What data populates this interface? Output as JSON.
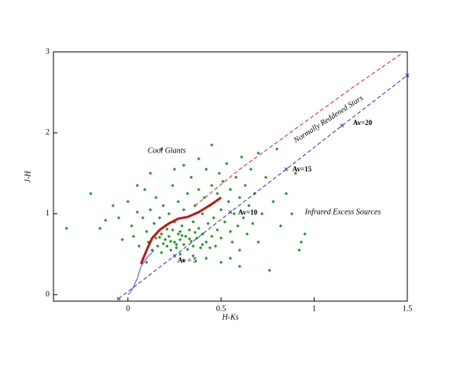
{
  "chart_data": {
    "type": "scatter",
    "x_label": "H-Ks",
    "y_label": "J-H",
    "xlim": [
      -0.4,
      1.5
    ],
    "ylim": [
      -0.08,
      3
    ],
    "xticks": [
      0,
      0.5,
      1,
      1.5
    ],
    "yticks": [
      0,
      1,
      2,
      3
    ],
    "annotations": [
      "Cool Giants",
      "Normally Reddened Stars",
      "Infrared Excess Sources",
      "Av=20",
      "Av=15",
      "Av=10",
      "Av = 5"
    ],
    "series": [
      {
        "mode": "markers",
        "color": "#1f9a1f",
        "x": [
          -0.33,
          -0.2,
          -0.15,
          -0.12,
          -0.08,
          -0.05,
          -0.03,
          0.0,
          0.02,
          0.03,
          0.05,
          0.06,
          0.08,
          0.09,
          0.1,
          0.11,
          0.12,
          0.13,
          0.14,
          0.15,
          0.15,
          0.16,
          0.17,
          0.18,
          0.18,
          0.19,
          0.2,
          0.2,
          0.21,
          0.22,
          0.22,
          0.23,
          0.24,
          0.24,
          0.25,
          0.25,
          0.26,
          0.27,
          0.27,
          0.28,
          0.28,
          0.29,
          0.3,
          0.3,
          0.31,
          0.32,
          0.32,
          0.33,
          0.34,
          0.34,
          0.35,
          0.35,
          0.36,
          0.37,
          0.38,
          0.38,
          0.39,
          0.4,
          0.4,
          0.41,
          0.42,
          0.42,
          0.43,
          0.44,
          0.45,
          0.45,
          0.46,
          0.47,
          0.48,
          0.48,
          0.49,
          0.5,
          0.5,
          0.51,
          0.52,
          0.53,
          0.54,
          0.55,
          0.55,
          0.56,
          0.57,
          0.58,
          0.59,
          0.6,
          0.6,
          0.61,
          0.62,
          0.63,
          0.64,
          0.65,
          0.66,
          0.67,
          0.68,
          0.7,
          0.7,
          0.72,
          0.74,
          0.76,
          0.78,
          0.8,
          0.82,
          0.85,
          0.88,
          0.9,
          0.92,
          0.95,
          0.93,
          0.18,
          0.25,
          0.1,
          0.35,
          0.42,
          0.5,
          0.55,
          0.6,
          0.3,
          0.12,
          0.05,
          0.45,
          0.38,
          0.3,
          0.26,
          0.29,
          0.33,
          0.36,
          0.23,
          0.19,
          0.21,
          0.17,
          0.4,
          0.44,
          0.28
        ],
        "y": [
          0.82,
          1.25,
          0.82,
          0.92,
          1.1,
          0.95,
          0.68,
          1.15,
          0.85,
          0.72,
          1.02,
          0.6,
          0.95,
          1.3,
          0.78,
          0.65,
          1.05,
          0.55,
          0.88,
          0.7,
          1.2,
          0.6,
          0.95,
          0.75,
          0.52,
          1.1,
          0.68,
          0.85,
          0.6,
          1.0,
          0.72,
          0.55,
          0.8,
          1.35,
          0.65,
          0.9,
          0.58,
          0.75,
          1.15,
          0.68,
          0.5,
          0.85,
          0.62,
          1.05,
          0.72,
          0.56,
          1.25,
          0.8,
          0.66,
          1.45,
          0.9,
          0.6,
          1.1,
          0.7,
          0.82,
          1.3,
          0.58,
          1.0,
          0.75,
          1.2,
          0.65,
          1.55,
          0.88,
          1.1,
          0.72,
          1.35,
          0.95,
          0.6,
          1.25,
          0.8,
          1.5,
          1.05,
          0.7,
          1.4,
          0.9,
          1.62,
          1.15,
          0.78,
          1.3,
          0.65,
          1.0,
          1.45,
          0.85,
          1.2,
          0.55,
          1.7,
          0.95,
          1.35,
          0.75,
          1.1,
          1.55,
          0.88,
          1.25,
          0.65,
          1.75,
          1.0,
          1.45,
          0.3,
          1.15,
          1.8,
          0.85,
          1.25,
          1.0,
          1.5,
          0.55,
          0.75,
          0.65,
          1.8,
          1.55,
          0.4,
          0.48,
          0.45,
          0.4,
          0.45,
          0.35,
          0.42,
          1.5,
          1.35,
          1.85,
          1.68,
          1.6,
          0.62,
          0.73,
          0.69,
          0.77,
          0.66,
          0.63,
          0.81,
          0.71,
          0.62,
          0.58,
          0.78
        ]
      },
      {
        "mode": "line",
        "dash": true,
        "color": "#e02020",
        "x": [
          0.36,
          0.6,
          0.9,
          1.2,
          1.47
        ],
        "y": [
          1.1,
          1.55,
          2.05,
          2.55,
          2.98
        ]
      },
      {
        "mode": "line",
        "dash": true,
        "marker": "x",
        "color": "#2030d0",
        "x": [
          -0.05,
          0.25,
          0.55,
          0.85,
          1.15,
          1.5
        ],
        "y": [
          -0.05,
          0.48,
          1.02,
          1.55,
          2.09,
          2.71
        ]
      },
      {
        "mode": "line",
        "color": "#c01818",
        "width": 3,
        "x": [
          0.07,
          0.1,
          0.13,
          0.17,
          0.22,
          0.27,
          0.32,
          0.38,
          0.45,
          0.5
        ],
        "y": [
          0.38,
          0.55,
          0.7,
          0.8,
          0.88,
          0.94,
          0.96,
          1.02,
          1.12,
          1.2
        ]
      },
      {
        "mode": "line",
        "color": "#5050d0",
        "x": [
          0.0,
          0.02,
          0.05,
          0.07,
          0.1,
          0.14
        ],
        "y": [
          0.0,
          0.05,
          0.2,
          0.35,
          0.45,
          0.55
        ]
      }
    ]
  }
}
